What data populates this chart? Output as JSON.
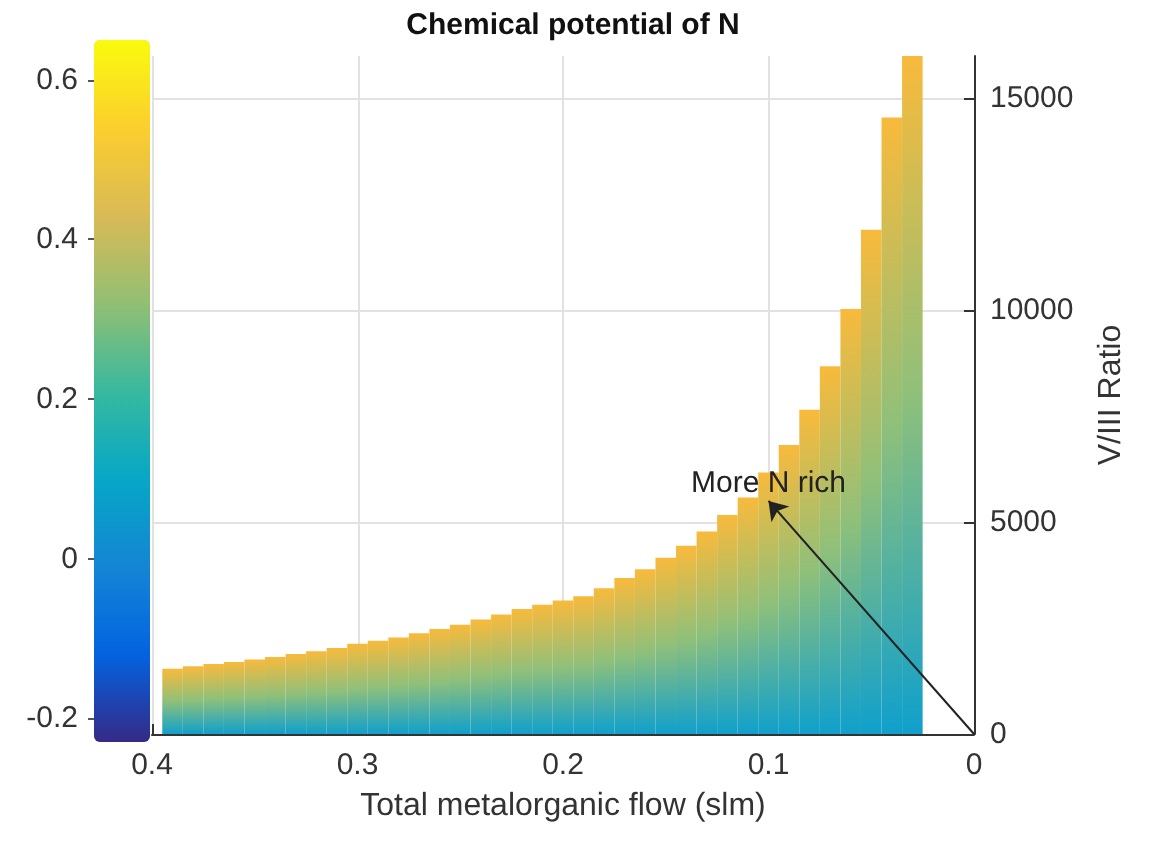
{
  "chart_data": {
    "type": "bar",
    "title": "Chemical potential of N",
    "xlabel": "Total metalorganic flow (slm)",
    "ylabel": "V/III Ratio",
    "x": [
      0.39,
      0.38,
      0.37,
      0.36,
      0.35,
      0.34,
      0.33,
      0.32,
      0.31,
      0.3,
      0.29,
      0.28,
      0.27,
      0.26,
      0.25,
      0.24,
      0.23,
      0.22,
      0.21,
      0.2,
      0.19,
      0.18,
      0.17,
      0.16,
      0.15,
      0.14,
      0.13,
      0.12,
      0.11,
      0.1,
      0.09,
      0.08,
      0.07,
      0.06,
      0.05,
      0.04,
      0.03
    ],
    "series": [
      {
        "color": "#f8ba3c",
        "values": [
          1540,
          1600,
          1650,
          1700,
          1760,
          1820,
          1890,
          1950,
          2030,
          2130,
          2200,
          2280,
          2380,
          2480,
          2580,
          2700,
          2820,
          2950,
          3050,
          3150,
          3250,
          3440,
          3680,
          3890,
          4160,
          4440,
          4780,
          5170,
          5580,
          6170,
          6820,
          7650,
          8680,
          10030,
          11900,
          14550,
          16000
        ]
      }
    ],
    "xlim": [
      0.4,
      0
    ],
    "xticks": [
      0.4,
      0.3,
      0.2,
      0.1,
      0
    ],
    "ylim": [
      0,
      16000
    ],
    "yticks": [
      0,
      5000,
      10000,
      15000
    ],
    "clim": [
      -0.23,
      0.65
    ],
    "cticks": [
      -0.2,
      0,
      0.2,
      0.4,
      0.6
    ],
    "grid": true,
    "annotations": [
      {
        "text": "More N rich",
        "x": 0.1,
        "y": 5700
      }
    ]
  }
}
